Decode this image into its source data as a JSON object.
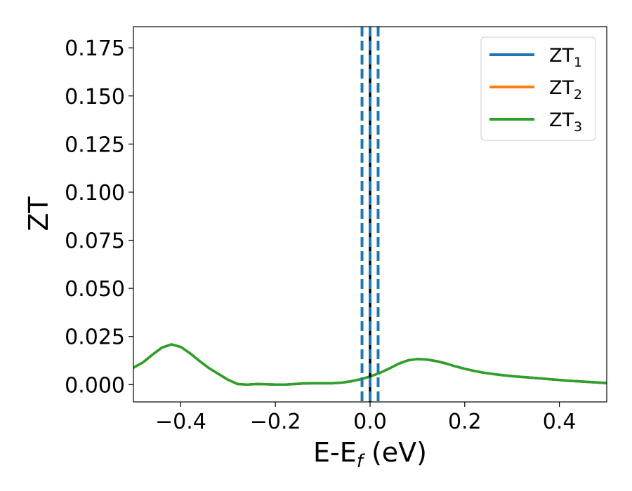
{
  "chart_data": {
    "type": "line",
    "title": "",
    "xlabel": "E-E",
    "xlabel_sub": "f",
    "xlabel_unit": " (eV)",
    "ylabel": "ZT",
    "xlim": [
      -0.5,
      0.5
    ],
    "ylim": [
      -0.009,
      0.186
    ],
    "xticks": [
      -0.4,
      -0.2,
      0.0,
      0.2,
      0.4
    ],
    "xtick_labels": [
      "−0.4",
      "−0.2",
      "0.0",
      "0.2",
      "0.4"
    ],
    "yticks": [
      0.0,
      0.025,
      0.05,
      0.075,
      0.1,
      0.125,
      0.15,
      0.175
    ],
    "ytick_labels": [
      "0.000",
      "0.025",
      "0.050",
      "0.075",
      "0.100",
      "0.125",
      "0.150",
      "0.175"
    ],
    "grid": false,
    "legend_position": "top-right",
    "x": [
      -0.5,
      -0.48,
      -0.46,
      -0.44,
      -0.42,
      -0.4,
      -0.38,
      -0.36,
      -0.34,
      -0.32,
      -0.3,
      -0.28,
      -0.26,
      -0.24,
      -0.22,
      -0.2,
      -0.18,
      -0.16,
      -0.14,
      -0.12,
      -0.1,
      -0.08,
      -0.06,
      -0.04,
      -0.02,
      0.0,
      0.02,
      0.04,
      0.06,
      0.08,
      0.1,
      0.12,
      0.14,
      0.16,
      0.18,
      0.2,
      0.22,
      0.24,
      0.26,
      0.28,
      0.3,
      0.32,
      0.34,
      0.36,
      0.38,
      0.4,
      0.42,
      0.44,
      0.46,
      0.48,
      0.5
    ],
    "series": [
      {
        "name": "ZT",
        "name_sub": "1",
        "color": "#1f77b4",
        "values": [
          0.0088,
          0.0115,
          0.0155,
          0.0192,
          0.0209,
          0.0196,
          0.0162,
          0.0122,
          0.0085,
          0.0055,
          0.0025,
          0.0003,
          0.0,
          0.0003,
          0.0002,
          0.0,
          0.0,
          0.0003,
          0.0006,
          0.0007,
          0.0007,
          0.0007,
          0.001,
          0.0017,
          0.0028,
          0.0042,
          0.006,
          0.0083,
          0.0108,
          0.0126,
          0.0133,
          0.013,
          0.0122,
          0.011,
          0.0095,
          0.0082,
          0.0071,
          0.0062,
          0.0055,
          0.0049,
          0.0044,
          0.004,
          0.0036,
          0.0032,
          0.0028,
          0.0024,
          0.002,
          0.0017,
          0.0014,
          0.0011,
          0.0008
        ]
      },
      {
        "name": "ZT",
        "name_sub": "2",
        "color": "#ff7f0e",
        "values": [
          0.0088,
          0.0115,
          0.0155,
          0.0192,
          0.0209,
          0.0196,
          0.0162,
          0.0122,
          0.0085,
          0.0055,
          0.0025,
          0.0003,
          0.0,
          0.0003,
          0.0002,
          0.0,
          0.0,
          0.0003,
          0.0006,
          0.0007,
          0.0007,
          0.0007,
          0.001,
          0.0017,
          0.0028,
          0.0042,
          0.006,
          0.0083,
          0.0108,
          0.0126,
          0.0133,
          0.013,
          0.0122,
          0.011,
          0.0095,
          0.0082,
          0.0071,
          0.0062,
          0.0055,
          0.0049,
          0.0044,
          0.004,
          0.0036,
          0.0032,
          0.0028,
          0.0024,
          0.002,
          0.0017,
          0.0014,
          0.0011,
          0.0008
        ]
      },
      {
        "name": "ZT",
        "name_sub": "3",
        "color": "#2ca02c",
        "values": [
          0.0088,
          0.0115,
          0.0155,
          0.0192,
          0.0209,
          0.0196,
          0.0162,
          0.0122,
          0.0085,
          0.0055,
          0.0025,
          0.0003,
          0.0,
          0.0003,
          0.0002,
          0.0,
          0.0,
          0.0003,
          0.0006,
          0.0007,
          0.0007,
          0.0007,
          0.001,
          0.0017,
          0.0028,
          0.0042,
          0.006,
          0.0083,
          0.0108,
          0.0126,
          0.0133,
          0.013,
          0.0122,
          0.011,
          0.0095,
          0.0082,
          0.0071,
          0.0062,
          0.0055,
          0.0049,
          0.0044,
          0.004,
          0.0036,
          0.0032,
          0.0028,
          0.0024,
          0.002,
          0.0017,
          0.0014,
          0.0011,
          0.0008
        ]
      }
    ],
    "vlines": [
      {
        "x": -0.017,
        "style": "dashed",
        "color": "#1f77b4"
      },
      {
        "x": 0.0,
        "style": "solid",
        "color": "#000000"
      },
      {
        "x": 0.0,
        "style": "dashed",
        "color": "#1f77b4"
      },
      {
        "x": 0.017,
        "style": "dashed",
        "color": "#1f77b4"
      }
    ]
  }
}
